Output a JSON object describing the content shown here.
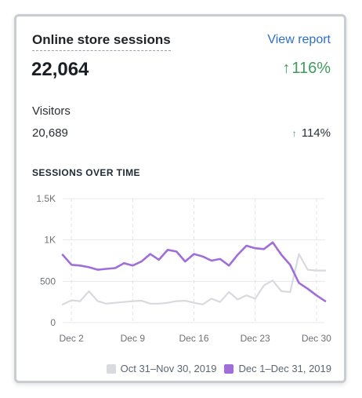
{
  "card": {
    "title": "Online store sessions",
    "view_report": "View report",
    "total": "22,064",
    "total_change": "116%",
    "visitors_label": "Visitors",
    "visitors_value": "20,689",
    "visitors_change": "114%",
    "section_heading": "SESSIONS OVER TIME"
  },
  "colors": {
    "current": "#a06ed8",
    "previous": "#d8dadd",
    "positive": "#3e9c5f",
    "link": "#2c6ecb"
  },
  "chart_data": {
    "type": "line",
    "x": [
      "Dec 1",
      "Dec 2",
      "Dec 3",
      "Dec 4",
      "Dec 5",
      "Dec 6",
      "Dec 7",
      "Dec 8",
      "Dec 9",
      "Dec 10",
      "Dec 11",
      "Dec 12",
      "Dec 13",
      "Dec 14",
      "Dec 15",
      "Dec 16",
      "Dec 17",
      "Dec 18",
      "Dec 19",
      "Dec 20",
      "Dec 21",
      "Dec 22",
      "Dec 23",
      "Dec 24",
      "Dec 25",
      "Dec 26",
      "Dec 27",
      "Dec 28",
      "Dec 29",
      "Dec 30",
      "Dec 31"
    ],
    "x_tick_labels": [
      "Dec 2",
      "Dec 9",
      "Dec 16",
      "Dec 23",
      "Dec 30"
    ],
    "y_tick_labels": [
      "1.5K",
      "1K",
      "500",
      "0"
    ],
    "ylim": [
      0,
      1500
    ],
    "grid": true,
    "legend_position": "bottom-right",
    "series": [
      {
        "name": "Oct 31–Nov 30, 2019",
        "color": "#d8dadd",
        "values": [
          220,
          270,
          260,
          380,
          260,
          230,
          240,
          250,
          260,
          265,
          230,
          230,
          240,
          260,
          265,
          240,
          220,
          290,
          250,
          370,
          280,
          330,
          290,
          450,
          510,
          380,
          370,
          830,
          640,
          630,
          630
        ]
      },
      {
        "name": "Dec 1–Dec 31, 2019",
        "color": "#a06ed8",
        "values": [
          820,
          700,
          690,
          670,
          640,
          650,
          660,
          720,
          690,
          740,
          830,
          760,
          880,
          860,
          740,
          830,
          800,
          750,
          770,
          690,
          820,
          930,
          900,
          890,
          970,
          820,
          700,
          480,
          410,
          330,
          260
        ]
      }
    ]
  }
}
